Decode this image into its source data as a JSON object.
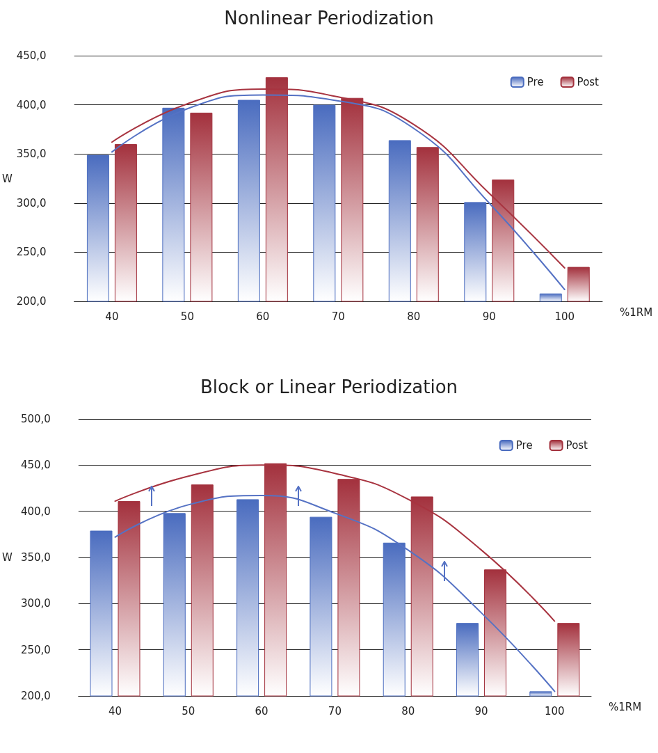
{
  "chart_data": [
    {
      "type": "bar",
      "title": "Nonlinear Periodization",
      "xlabel": "%1RM",
      "ylabel": "W",
      "categories": [
        "40",
        "50",
        "60",
        "70",
        "80",
        "90",
        "100"
      ],
      "series": [
        {
          "name": "Pre",
          "color": "#4a6cbf",
          "values": [
            349,
            397,
            405,
            400,
            364,
            301,
            208
          ]
        },
        {
          "name": "Post",
          "color": "#a3313d",
          "values": [
            360,
            392,
            428,
            407,
            357,
            324,
            235
          ]
        },
        {
          "type": "line",
          "color": "#5572c4",
          "values": [
            352,
            396,
            410,
            404,
            376,
            300,
            212
          ]
        },
        {
          "type": "line",
          "color": "#a83440",
          "values": [
            362,
            401,
            416,
            408,
            380,
            310,
            234
          ]
        }
      ],
      "ylim": [
        200,
        450
      ],
      "yticks": [
        {
          "value": 200,
          "label": "200,0"
        },
        {
          "value": 250,
          "label": "250,0"
        },
        {
          "value": 300,
          "label": "300,0"
        },
        {
          "value": 350,
          "label": "350,0"
        },
        {
          "value": 400,
          "label": "400,0"
        },
        {
          "value": 450,
          "label": "450,0"
        }
      ],
      "grid": "y",
      "legend": "top right",
      "marker": "none"
    },
    {
      "type": "bar",
      "title": "Block or Linear Periodization",
      "xlabel": "%1RM",
      "ylabel": "W",
      "categories": [
        "40",
        "50",
        "60",
        "70",
        "80",
        "90",
        "100"
      ],
      "series": [
        {
          "name": "Pre",
          "color": "#4a6cbf",
          "values": [
            379,
            398,
            413,
            394,
            366,
            279,
            205
          ]
        },
        {
          "name": "Post",
          "color": "#a3313d",
          "values": [
            411,
            429,
            452,
            435,
            416,
            337,
            279
          ]
        },
        {
          "type": "line",
          "color": "#5572c4",
          "values": [
            372,
            407,
            417,
            398,
            358,
            290,
            205
          ]
        },
        {
          "type": "line",
          "color": "#a83440",
          "values": [
            411,
            438,
            450,
            441,
            413,
            358,
            281
          ]
        }
      ],
      "ylim": [
        200,
        500
      ],
      "yticks": [
        {
          "value": 200,
          "label": "200,0"
        },
        {
          "value": 250,
          "label": "250,0"
        },
        {
          "value": 300,
          "label": "300,0"
        },
        {
          "value": 350,
          "label": "350,0"
        },
        {
          "value": 400,
          "label": "400,0"
        },
        {
          "value": 450,
          "label": "450,0"
        },
        {
          "value": 500,
          "label": "500,0"
        }
      ],
      "grid": "y",
      "legend": "top right",
      "marker": "none"
    }
  ]
}
